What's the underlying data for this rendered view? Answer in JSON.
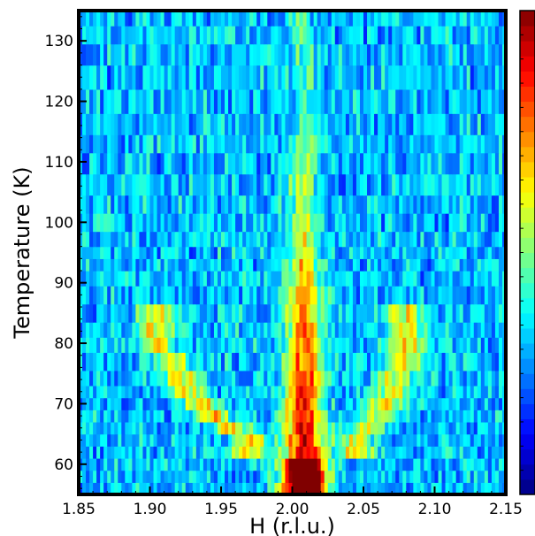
{
  "chart_data": {
    "type": "heatmap",
    "title": "",
    "xlabel": "H (r.l.u.)",
    "ylabel": "Temperature (K)",
    "xlim": [
      1.85,
      2.15
    ],
    "ylim": [
      55,
      135
    ],
    "x_ticks": [
      1.85,
      1.9,
      1.95,
      2.0,
      2.05,
      2.1,
      2.15
    ],
    "x_tick_labels": [
      "1.85",
      "1.90",
      "1.95",
      "2.00",
      "2.05",
      "2.10",
      "2.15"
    ],
    "y_ticks": [
      60,
      70,
      80,
      90,
      100,
      110,
      120,
      130
    ],
    "y_tick_labels": [
      "60",
      "70",
      "80",
      "90",
      "100",
      "110",
      "120",
      "130"
    ],
    "colormap": "jet",
    "colorbar": true,
    "colorbar_tick_labels": false,
    "temperatures": [
      56,
      58,
      60,
      62,
      64,
      66,
      68,
      70,
      72,
      74,
      77,
      80,
      82,
      85,
      88,
      91,
      93,
      95,
      97,
      100,
      103,
      106,
      110,
      113,
      116,
      120,
      124,
      128,
      131,
      134
    ],
    "features": {
      "central_peak_H": 2.008,
      "split_peaks": [
        {
          "T": 64,
          "H_left": 1.97,
          "H_right": 2.045
        },
        {
          "T": 68,
          "H_left": 1.945,
          "H_right": 2.06
        },
        {
          "T": 72,
          "H_left": 1.925,
          "H_right": 2.07
        },
        {
          "T": 77,
          "H_left": 1.915,
          "H_right": 2.08
        },
        {
          "T": 80,
          "H_left": 1.905,
          "H_right": 2.08
        },
        {
          "T": 85,
          "H_left": 1.905,
          "H_right": 2.08
        }
      ],
      "max_intensity_region": {
        "T_range": [
          55,
          61
        ],
        "H_range": [
          1.995,
          2.025
        ]
      }
    }
  }
}
